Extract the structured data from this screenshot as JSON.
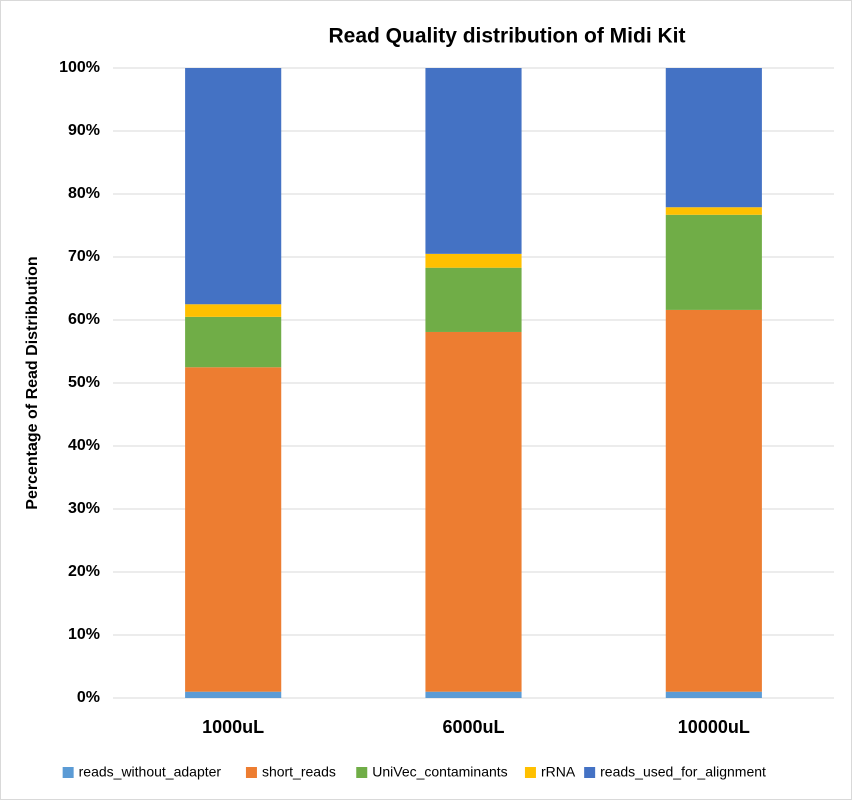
{
  "chart_data": {
    "type": "stacked_bar",
    "title": "Read Quality distribution of Midi Kit",
    "y_label": "Percentage of Read Distribbution",
    "categories": [
      "1000uL",
      "6000uL",
      "10000uL"
    ],
    "series": [
      {
        "name": "reads_without_adapter",
        "color": "#5b9bd5",
        "values": [
          1,
          1,
          1
        ]
      },
      {
        "name": "short_reads",
        "color": "#ed7d31",
        "values": [
          51.5,
          57.1,
          60.6
        ]
      },
      {
        "name": "UniVec_contaminants",
        "color": "#70ad47",
        "values": [
          8,
          10.2,
          15.1
        ]
      },
      {
        "name": "rRNA",
        "color": "#ffc000",
        "values": [
          2,
          2.2,
          1.2
        ]
      },
      {
        "name": "reads_used_for_alignment",
        "color": "#4472c4",
        "values": [
          37.5,
          29.5,
          22.1
        ]
      }
    ],
    "ylim": [
      0,
      100
    ],
    "yticks": [
      {
        "value": 0,
        "label": "0%"
      },
      {
        "value": 10,
        "label": "10%"
      },
      {
        "value": 20,
        "label": "20%"
      },
      {
        "value": 30,
        "label": "30%"
      },
      {
        "value": 40,
        "label": "40%"
      },
      {
        "value": 50,
        "label": "50%"
      },
      {
        "value": 60,
        "label": "60%"
      },
      {
        "value": 70,
        "label": "70%"
      },
      {
        "value": 80,
        "label": "80%"
      },
      {
        "value": 90,
        "label": "90%"
      },
      {
        "value": 100,
        "label": "100%"
      }
    ],
    "grid": true,
    "legend": "bottom"
  }
}
